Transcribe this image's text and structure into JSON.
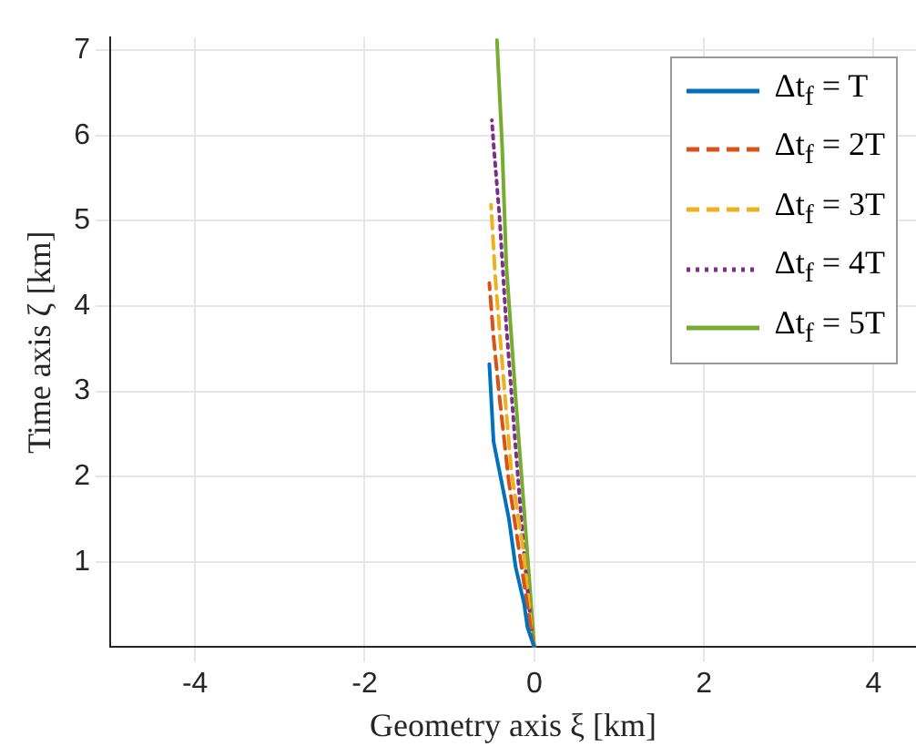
{
  "chart_data": {
    "type": "line",
    "xlabel": "Geometry axis ξ [km]",
    "ylabel": "Time axis ζ [km]",
    "xlim": [
      -5,
      4.5
    ],
    "ylim": [
      0,
      7.15
    ],
    "xticks": [
      -4,
      -2,
      0,
      2,
      4
    ],
    "yticks": [
      1,
      2,
      3,
      4,
      5,
      6,
      7
    ],
    "grid": true,
    "legend": "top right",
    "marker": "none",
    "series": [
      {
        "name": "Δt$_{f}$ = T",
        "color": "#0072bd",
        "line_style": "solid",
        "x": [
          0,
          -0.08,
          -0.12,
          -0.22,
          -0.3,
          -0.41,
          -0.48,
          -0.53
        ],
        "values": [
          0,
          0.23,
          0.51,
          0.94,
          1.51,
          2.06,
          2.41,
          3.32
        ]
      },
      {
        "name": "Δt$_{f}$ = 2T",
        "color": "#d95319",
        "line_style": "dashed",
        "x": [
          0,
          -0.02,
          -0.15,
          -0.3,
          -0.41,
          -0.48,
          -0.53
        ],
        "values": [
          0,
          0.08,
          0.94,
          1.94,
          2.93,
          3.63,
          4.27
        ]
      },
      {
        "name": "Δt$_{f}$ = 3T",
        "color": "#edb120",
        "line_style": "dashed",
        "x": [
          0,
          -0.02,
          -0.12,
          -0.27,
          -0.38,
          -0.46,
          -0.51
        ],
        "values": [
          0,
          0.08,
          1.08,
          2.06,
          3.35,
          4.34,
          5.19
        ]
      },
      {
        "name": "Δt$_{f}$ = 4T",
        "color": "#7e2f8e",
        "line_style": "dotted",
        "x": [
          0,
          -0.02,
          -0.12,
          -0.22,
          -0.33,
          -0.41,
          -0.48,
          -0.5
        ],
        "values": [
          0,
          0.08,
          1.08,
          2.34,
          3.77,
          5.05,
          5.9,
          6.18
        ]
      },
      {
        "name": "Δt$_{f}$ = 5T",
        "color": "#77ac30",
        "line_style": "solid",
        "x": [
          0,
          -0.08,
          -0.22,
          -0.33,
          -0.38,
          -0.44
        ],
        "values": [
          0,
          1.08,
          2.93,
          4.49,
          5.9,
          7.12
        ]
      }
    ]
  }
}
